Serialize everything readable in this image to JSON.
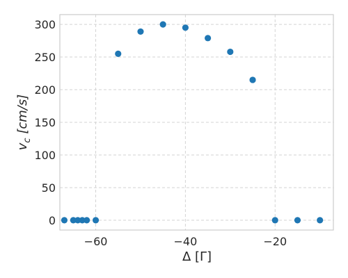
{
  "chart_data": {
    "type": "scatter",
    "title": "",
    "xlabel": "Δ [Γ]",
    "ylabel_main": "v",
    "ylabel_sub": "c",
    "ylabel_unit": " [cm/s]",
    "xlim": [
      -68,
      -7
    ],
    "ylim": [
      -15,
      315
    ],
    "xticks": [
      -60,
      -40,
      -20
    ],
    "xtick_labels": [
      "−60",
      "−40",
      "−20"
    ],
    "yticks": [
      0,
      50,
      100,
      150,
      200,
      250,
      300
    ],
    "ytick_labels": [
      "0",
      "50",
      "100",
      "150",
      "200",
      "250",
      "300"
    ],
    "grid": true,
    "marker_color": "#1f77b4",
    "series": [
      {
        "x": [
          -67,
          -65,
          -64,
          -63,
          -62,
          -60,
          -55,
          -50,
          -45,
          -40,
          -35,
          -30,
          -25,
          -20,
          -15,
          -10
        ],
        "y": [
          0,
          0,
          0,
          0,
          0,
          0,
          255,
          289,
          300,
          295,
          279,
          258,
          215,
          0,
          0,
          0
        ]
      }
    ]
  }
}
